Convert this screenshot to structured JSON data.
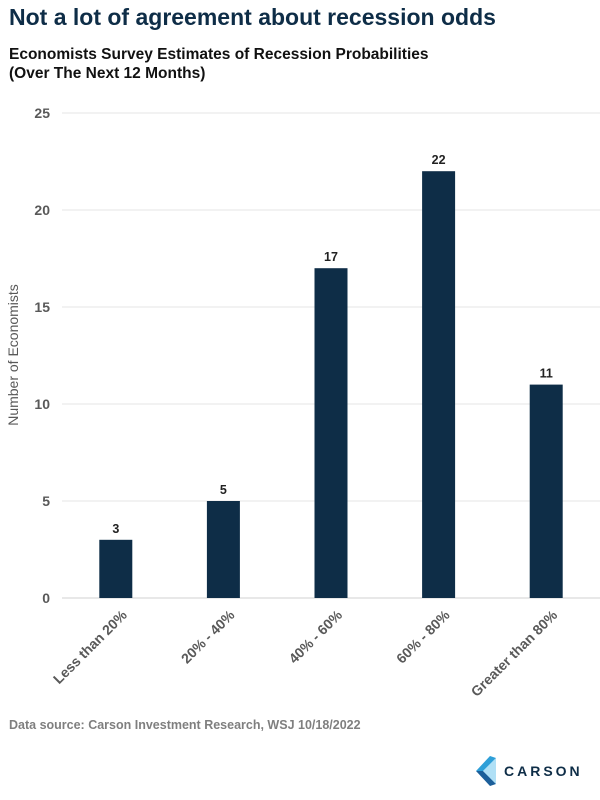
{
  "headline": "Not a lot of agreement about recession odds",
  "chart_data": {
    "type": "bar",
    "title": "Economists Survey Estimates of Recession Probabilities",
    "subtitle": "(Over The Next 12 Months)",
    "categories": [
      "Less than 20%",
      "20% - 40%",
      "40% - 60%",
      "60% - 80%",
      "Greater than 80%"
    ],
    "values": [
      3,
      5,
      17,
      22,
      11
    ],
    "xlabel": "",
    "ylabel": "Number of Economists",
    "ylim": [
      0,
      25
    ],
    "yticks": [
      0,
      5,
      10,
      15,
      20,
      25
    ],
    "grid": true,
    "bar_color": "#0e2d47"
  },
  "footer": {
    "source": "Data source: Carson Investment Research, WSJ   10/18/2022"
  },
  "logo": {
    "icon": "carson-chevron-icon",
    "text": "CARSON",
    "colors": [
      "#2e9fd8",
      "#6fc6ee",
      "#1c5f9a"
    ]
  }
}
